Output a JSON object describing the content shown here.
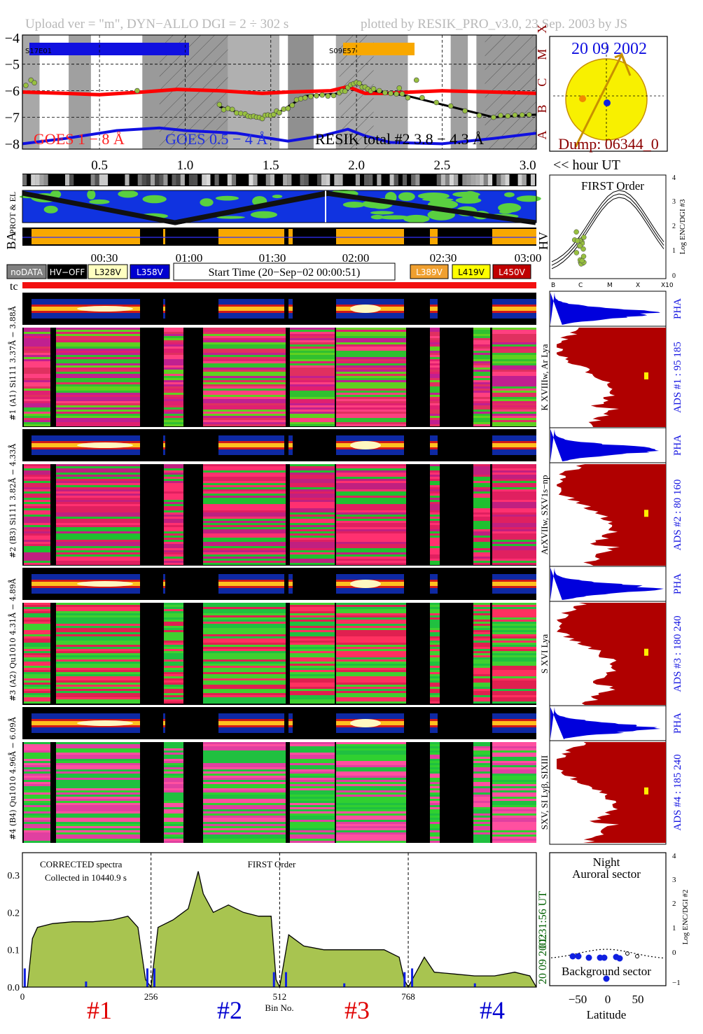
{
  "header": {
    "left": "Upload ver = \"m\", DYN−ALLO DGI =   2 ÷ 302 s",
    "right": "plotted by RESIK_PRO_v3.0, 23 Sep. 2003 by JS"
  },
  "colors": {
    "goes_long": "#ff0000",
    "goes_short": "#1010e0",
    "resik_total": "#000000",
    "resik_points": "#98c040",
    "hv_amber": "#f8a800",
    "adc_fill": "#b00000",
    "pha_fill": "#0000dd",
    "spectrum_fill": "#a8c450",
    "sun": "#f8f000",
    "sun_edge": "#c89000",
    "flare_class_color": "#8b0000"
  },
  "goes_panel": {
    "active_regions": [
      "S17E01",
      "S09E57"
    ],
    "series_labels": [
      "GOES 1 − 8 Å",
      "GOES 0.5 − 4 Å",
      "RESIK total #2  3.8 − 4.3 Å"
    ],
    "flare_classes": [
      "X",
      "M",
      "C",
      "B",
      "A"
    ],
    "yticks": [
      "−4",
      "−5",
      "−6",
      "−7",
      "−8"
    ],
    "xticks": [
      "0.5",
      "1.0",
      "1.5",
      "2.0",
      "2.5",
      "3.0"
    ],
    "x_unit": "<< hour UT"
  },
  "sun_panel": {
    "date": "20 09 2002",
    "dump": "Dump: 06344_0"
  },
  "orbit_strips": {
    "labels": [
      "PROT & EL",
      "BA",
      "HV"
    ],
    "time_ticks": [
      "00:30",
      "01:00",
      "01:30",
      "02:00",
      "02:30",
      "03:00"
    ]
  },
  "legend_row": {
    "left_items": [
      {
        "label": "noDATA",
        "bg": "#808080",
        "fg": "#ffffff"
      },
      {
        "label": "HV−OFF",
        "bg": "#000000",
        "fg": "#ffffff"
      },
      {
        "label": "L328V",
        "bg": "#ffffc0",
        "fg": "#000000"
      },
      {
        "label": "L358V",
        "bg": "#0000d0",
        "fg": "#ffffff"
      }
    ],
    "start_time": "Start Time (20−Sep−02 00:00:51)",
    "right_items": [
      {
        "label": "L389V",
        "bg": "#f0a030",
        "fg": "#ffffff"
      },
      {
        "label": "L419V",
        "bg": "#ffff00",
        "fg": "#000000"
      },
      {
        "label": "L450V",
        "bg": "#c00000",
        "fg": "#ffffff"
      }
    ],
    "tc": "tc"
  },
  "first_order_panel": {
    "title": "FIRST Order",
    "ylabel": "Log ENC/DGI #3",
    "yticks": [
      "4",
      "3",
      "2",
      "1",
      "0"
    ],
    "xticks": [
      "B",
      "C",
      "M",
      "X",
      "X10"
    ]
  },
  "channels": [
    {
      "pha_label": "#4 (B4) Qu1010  4.96Å − 6.09Å",
      "lines": "SXV, SI Lyβ, SIXIII",
      "ads": "ADS #4 :   185 240",
      "pha": "PHA"
    },
    {
      "pha_label": "#3 (A2) Qu1010  4.31Å − 4.89Å",
      "lines": "S XVI Lya",
      "ads": "ADS #3 :   180 240",
      "pha": "PHA"
    },
    {
      "pha_label": "#2 (B3) Si111  3.82Å − 4.33Å",
      "lines": "ArXVIIw, SXV1s−np",
      "ads": "ADS #2 :    80 160",
      "pha": "PHA"
    },
    {
      "pha_label": "#1 (A1) Si111  3.37Å − 3.88Å",
      "lines": "K XVIIIw, Ar Lya",
      "ads": "ADS #1 :    95 185",
      "pha": "PHA"
    }
  ],
  "spectrum_panel": {
    "note1": "CORRECTED spectra",
    "note2": "Collected in 10440.9 s",
    "mode": "FIRST Order",
    "time": "01:31:56 UT",
    "date": "20 09 2002",
    "xlabel": "Bin No.",
    "yticks": [
      "0.3",
      "0.2",
      "0.1",
      "0.0"
    ],
    "xticks": [
      "0",
      "256",
      "512",
      "768"
    ],
    "channel_tags": [
      "#1",
      "#2",
      "#3",
      "#4"
    ],
    "tag_colors": [
      "#e00000",
      "#0000d0",
      "#e00000",
      "#0000d0"
    ]
  },
  "latitude_panel": {
    "title1": "Night",
    "title2": "Auroral sector",
    "bottom": "Background sector",
    "xlabel": "Latitude",
    "ylabel": "Log ENC/DGI #2",
    "xticks": [
      "−50",
      "0",
      "50"
    ],
    "yticks": [
      "4",
      "3",
      "2",
      "1",
      "0",
      "−1"
    ]
  },
  "chart_data": [
    {
      "type": "line",
      "title": "",
      "xlabel": "<< hour UT",
      "ylabel": "",
      "xlim": [
        0.05,
        3.05
      ],
      "ylim": [
        -8.2,
        -3.9
      ],
      "series": [
        {
          "name": "GOES 1 − 8 Å",
          "x": [
            0.05,
            0.3,
            0.5,
            0.75,
            0.95,
            1.2,
            1.45,
            1.6,
            1.85,
            1.95,
            2.05,
            2.15,
            2.5,
            2.8,
            3.05
          ],
          "values": [
            -6.05,
            -6.1,
            -6.15,
            -6.05,
            -5.95,
            -6.0,
            -6.1,
            -6.05,
            -6.0,
            -5.85,
            -6.1,
            -6.1,
            -6.0,
            -6.05,
            -6.1
          ]
        },
        {
          "name": "GOES 0.5 − 4 Å",
          "x": [
            0.05,
            0.3,
            0.6,
            0.85,
            1.0,
            1.3,
            1.6,
            1.8,
            1.95,
            2.05,
            2.2,
            2.5,
            2.8,
            3.05
          ],
          "values": [
            -8.0,
            -7.8,
            -7.5,
            -7.4,
            -7.5,
            -7.6,
            -7.9,
            -7.7,
            -7.45,
            -7.7,
            -7.95,
            -8.0,
            -7.8,
            -7.6
          ]
        },
        {
          "name": "RESIK total #2  3.8 − 4.3 Å",
          "x": [
            1.2,
            1.35,
            1.45,
            1.55,
            1.7,
            1.9,
            2.0,
            2.1,
            2.3,
            2.8,
            3.05
          ],
          "values": [
            -6.6,
            -6.9,
            -7.0,
            -6.8,
            -6.2,
            -6.1,
            -5.7,
            -6.0,
            -6.2,
            -7.0,
            -6.9
          ]
        }
      ]
    },
    {
      "type": "area",
      "title": "",
      "xlabel": "Bin No.",
      "ylabel": "",
      "xlim": [
        0,
        1023
      ],
      "ylim": [
        0,
        0.36
      ],
      "series": [
        {
          "name": "",
          "x": [
            0,
            10,
            20,
            30,
            60,
            100,
            140,
            180,
            210,
            230,
            245,
            256,
            270,
            300,
            330,
            350,
            360,
            380,
            410,
            440,
            470,
            495,
            505,
            512,
            530,
            560,
            600,
            640,
            680,
            720,
            750,
            760,
            768,
            780,
            800,
            820,
            860,
            900,
            940,
            980,
            1010,
            1023
          ],
          "values": [
            0.0,
            0.0,
            0.13,
            0.16,
            0.17,
            0.175,
            0.175,
            0.18,
            0.19,
            0.16,
            0.02,
            0.0,
            0.16,
            0.18,
            0.21,
            0.31,
            0.25,
            0.2,
            0.22,
            0.2,
            0.19,
            0.19,
            0.02,
            0.0,
            0.14,
            0.11,
            0.1,
            0.1,
            0.1,
            0.1,
            0.08,
            0.02,
            0.0,
            0.03,
            0.08,
            0.04,
            0.035,
            0.03,
            0.03,
            0.04,
            0.03,
            0.0
          ]
        }
      ]
    }
  ]
}
